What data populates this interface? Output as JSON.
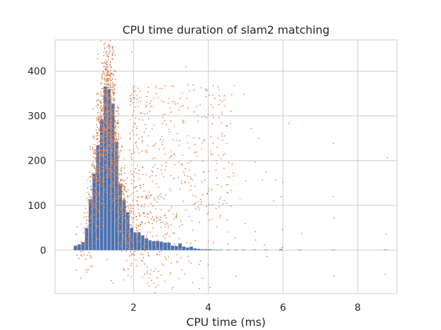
{
  "chart_data": {
    "type": "bar",
    "title": "CPU time duration of slam2 matching",
    "xlabel": "CPU time (ms)",
    "ylabel": "",
    "xlim": [
      -0.1,
      9.05
    ],
    "ylim": [
      -97,
      470
    ],
    "xticks": [
      2,
      4,
      6,
      8
    ],
    "yticks": [
      0,
      100,
      200,
      300,
      400
    ],
    "grid": true,
    "colors": {
      "histogram": "#4c72b0",
      "scatter": "#dd8452",
      "grid": "#cccccc",
      "frame": "#cccccc",
      "background": "#ffffff"
    },
    "series": [
      {
        "kind": "histogram",
        "bin_width": 0.1,
        "bins": [
          {
            "x": 0.45,
            "y": 10
          },
          {
            "x": 0.55,
            "y": 13
          },
          {
            "x": 0.65,
            "y": 18
          },
          {
            "x": 0.75,
            "y": 50
          },
          {
            "x": 0.85,
            "y": 113
          },
          {
            "x": 0.95,
            "y": 170
          },
          {
            "x": 1.05,
            "y": 235
          },
          {
            "x": 1.15,
            "y": 292
          },
          {
            "x": 1.25,
            "y": 366
          },
          {
            "x": 1.35,
            "y": 360
          },
          {
            "x": 1.45,
            "y": 328
          },
          {
            "x": 1.55,
            "y": 242
          },
          {
            "x": 1.65,
            "y": 148
          },
          {
            "x": 1.75,
            "y": 113
          },
          {
            "x": 1.85,
            "y": 85
          },
          {
            "x": 1.95,
            "y": 50
          },
          {
            "x": 2.05,
            "y": 40
          },
          {
            "x": 2.15,
            "y": 40
          },
          {
            "x": 2.25,
            "y": 33
          },
          {
            "x": 2.35,
            "y": 26
          },
          {
            "x": 2.45,
            "y": 22
          },
          {
            "x": 2.55,
            "y": 20
          },
          {
            "x": 2.65,
            "y": 21
          },
          {
            "x": 2.75,
            "y": 19
          },
          {
            "x": 2.85,
            "y": 17
          },
          {
            "x": 2.95,
            "y": 17
          },
          {
            "x": 3.05,
            "y": 10
          },
          {
            "x": 3.15,
            "y": 9
          },
          {
            "x": 3.25,
            "y": 15
          },
          {
            "x": 3.35,
            "y": 8
          },
          {
            "x": 3.45,
            "y": 6
          },
          {
            "x": 3.55,
            "y": 8
          },
          {
            "x": 3.65,
            "y": 4
          },
          {
            "x": 3.75,
            "y": 3
          },
          {
            "x": 3.85,
            "y": 2
          },
          {
            "x": 3.95,
            "y": 2
          },
          {
            "x": 4.05,
            "y": 2
          },
          {
            "x": 4.15,
            "y": 1
          },
          {
            "x": 4.25,
            "y": 1
          },
          {
            "x": 4.35,
            "y": 1
          },
          {
            "x": 4.55,
            "y": 1
          },
          {
            "x": 4.75,
            "y": 1
          },
          {
            "x": 4.95,
            "y": 1
          },
          {
            "x": 5.25,
            "y": 1
          },
          {
            "x": 5.55,
            "y": 1
          },
          {
            "x": 5.95,
            "y": 2
          },
          {
            "x": 6.45,
            "y": 1
          },
          {
            "x": 7.35,
            "y": 1
          },
          {
            "x": 8.75,
            "y": 1
          }
        ]
      },
      {
        "kind": "scatter",
        "generator": "jittered points, y ≈ histogram count ± spread, dense near 1.0–2.0 ms, sparse tail to 8.8 ms",
        "points": [
          {
            "x": 1.5,
            "y": 437
          },
          {
            "x": 1.95,
            "y": 443
          },
          {
            "x": 3.4,
            "y": 410
          },
          {
            "x": 1.05,
            "y": 438
          },
          {
            "x": 3.95,
            "y": 358
          },
          {
            "x": 4.3,
            "y": 345
          },
          {
            "x": 4.95,
            "y": 348
          },
          {
            "x": 5.15,
            "y": 272
          },
          {
            "x": 6.15,
            "y": 283
          },
          {
            "x": 7.35,
            "y": 239
          },
          {
            "x": 7.35,
            "y": 120
          },
          {
            "x": 8.8,
            "y": 207
          },
          {
            "x": 5.8,
            "y": 156
          },
          {
            "x": 6.0,
            "y": 152
          },
          {
            "x": 5.55,
            "y": 174
          },
          {
            "x": 5.45,
            "y": 157
          },
          {
            "x": 5.0,
            "y": 155
          },
          {
            "x": 5.25,
            "y": 197
          },
          {
            "x": 1.4,
            "y": -68
          },
          {
            "x": 1.45,
            "y": -74
          },
          {
            "x": 0.85,
            "y": -35
          },
          {
            "x": 1.3,
            "y": -21
          },
          {
            "x": 5.35,
            "y": 250
          },
          {
            "x": 5.95,
            "y": 120
          },
          {
            "x": 5.75,
            "y": 110
          },
          {
            "x": 4.5,
            "y": 129
          },
          {
            "x": 4.85,
            "y": 115
          }
        ]
      }
    ]
  }
}
